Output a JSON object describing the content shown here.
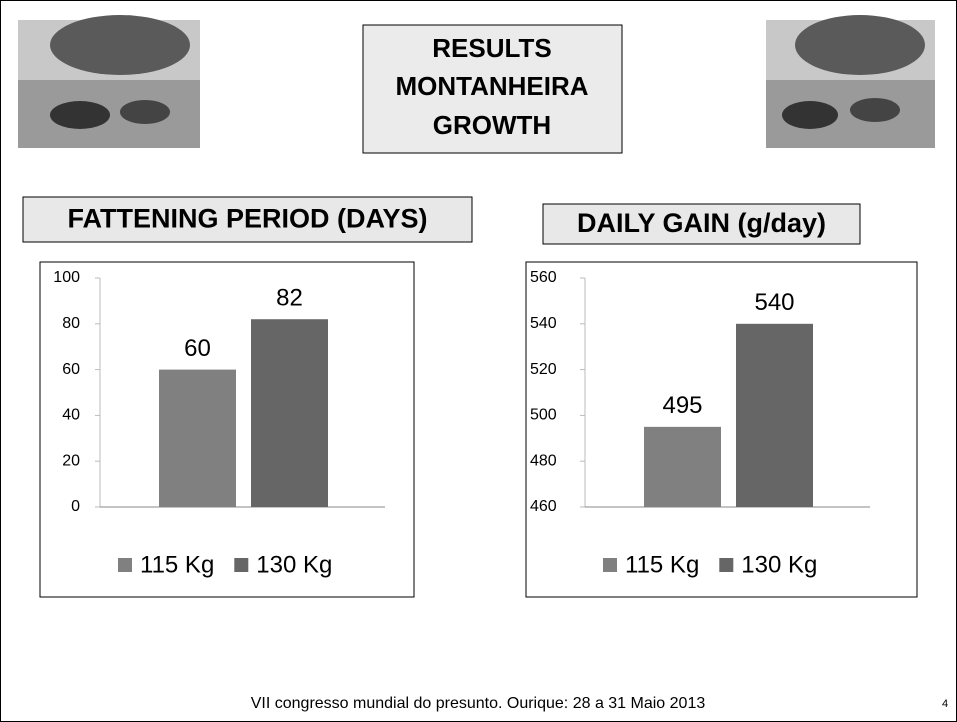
{
  "slide": {
    "title_lines": [
      "RESULTS",
      "MONTANHEIRA",
      "GROWTH"
    ],
    "footer": "VII congresso mundial do presunto. Ourique: 28 a 31 Maio 2013",
    "page_number": 4
  },
  "chart_data": [
    {
      "type": "bar",
      "title": "FATTENING PERIOD (DAYS)",
      "categories": [
        null
      ],
      "series": [
        {
          "name": "115 Kg",
          "color": "#808080",
          "values": [
            60
          ]
        },
        {
          "name": "130 Kg",
          "color": "#666666",
          "values": [
            82
          ]
        }
      ],
      "ylim": [
        0,
        100
      ],
      "yticks": [
        0,
        20,
        40,
        60,
        80,
        100
      ],
      "grid": false,
      "legend": "bottom"
    },
    {
      "type": "bar",
      "title": "DAILY GAIN (g/day)",
      "categories": [
        null
      ],
      "series": [
        {
          "name": "115 Kg",
          "color": "#808080",
          "values": [
            495
          ]
        },
        {
          "name": "130 Kg",
          "color": "#666666",
          "values": [
            540
          ]
        }
      ],
      "ylim": [
        460,
        560
      ],
      "yticks": [
        460,
        480,
        500,
        520,
        540,
        560
      ],
      "grid": false,
      "legend": "bottom"
    }
  ]
}
